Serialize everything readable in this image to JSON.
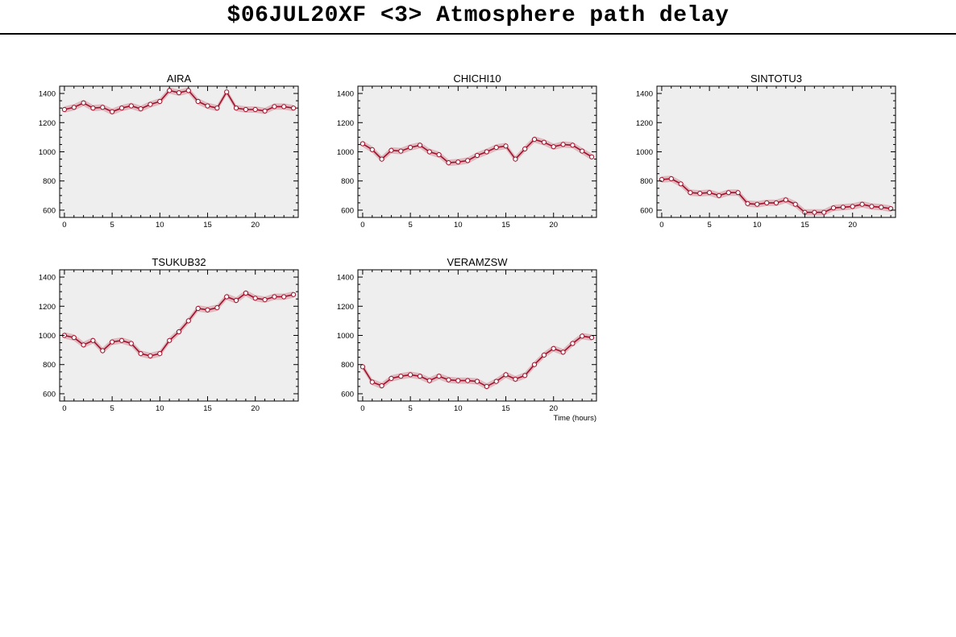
{
  "page": {
    "title": "$06JUL20XF <3>  Atmosphere path delay"
  },
  "colors": {
    "panel_bg": "#eeeeee",
    "line": "#a0102a",
    "band": "#d8a8b0",
    "marker_fill": "#ffffff"
  },
  "chart_data": [
    {
      "type": "line",
      "title": "AIRA",
      "x": [
        0,
        1,
        2,
        3,
        4,
        5,
        6,
        7,
        8,
        9,
        10,
        11,
        12,
        13,
        14,
        15,
        16,
        17,
        18,
        19,
        20,
        21,
        22,
        23,
        24
      ],
      "y": [
        1290,
        1305,
        1335,
        1300,
        1305,
        1275,
        1300,
        1315,
        1295,
        1325,
        1345,
        1420,
        1405,
        1420,
        1345,
        1315,
        1300,
        1410,
        1300,
        1290,
        1290,
        1280,
        1310,
        1310,
        1300
      ],
      "xlim": [
        -0.5,
        24.5
      ],
      "ylim": [
        550,
        1450
      ],
      "xticks": [
        0,
        5,
        10,
        15,
        20
      ],
      "yticks": [
        600,
        800,
        1000,
        1200,
        1400
      ]
    },
    {
      "type": "line",
      "title": "CHICHI10",
      "x": [
        0,
        1,
        2,
        3,
        4,
        5,
        6,
        7,
        8,
        9,
        10,
        11,
        12,
        13,
        14,
        15,
        16,
        17,
        18,
        19,
        20,
        21,
        22,
        23,
        24
      ],
      "y": [
        1055,
        1015,
        950,
        1010,
        1005,
        1030,
        1045,
        1000,
        980,
        925,
        930,
        940,
        975,
        1000,
        1030,
        1040,
        950,
        1020,
        1085,
        1065,
        1035,
        1050,
        1045,
        1005,
        965
      ],
      "xlim": [
        -0.5,
        24.5
      ],
      "ylim": [
        550,
        1450
      ],
      "xticks": [
        0,
        5,
        10,
        15,
        20
      ],
      "yticks": [
        600,
        800,
        1000,
        1200,
        1400
      ]
    },
    {
      "type": "line",
      "title": "SINTOTU3",
      "x": [
        0,
        1,
        2,
        3,
        4,
        5,
        6,
        7,
        8,
        9,
        10,
        11,
        12,
        13,
        14,
        15,
        16,
        17,
        18,
        19,
        20,
        21,
        22,
        23,
        24
      ],
      "y": [
        810,
        815,
        780,
        720,
        715,
        720,
        700,
        720,
        720,
        645,
        640,
        650,
        650,
        670,
        640,
        585,
        585,
        585,
        615,
        620,
        625,
        640,
        625,
        620,
        610
      ],
      "xlim": [
        -0.5,
        24.5
      ],
      "ylim": [
        550,
        1450
      ],
      "xticks": [
        0,
        5,
        10,
        15,
        20
      ],
      "yticks": [
        600,
        800,
        1000,
        1200,
        1400
      ]
    },
    {
      "type": "line",
      "title": "TSUKUB32",
      "x": [
        0,
        1,
        2,
        3,
        4,
        5,
        6,
        7,
        8,
        9,
        10,
        11,
        12,
        13,
        14,
        15,
        16,
        17,
        18,
        19,
        20,
        21,
        22,
        23,
        24
      ],
      "y": [
        1000,
        985,
        935,
        965,
        895,
        955,
        965,
        945,
        875,
        860,
        875,
        965,
        1025,
        1100,
        1185,
        1175,
        1190,
        1265,
        1240,
        1290,
        1255,
        1245,
        1265,
        1265,
        1280
      ],
      "xlim": [
        -0.5,
        24.5
      ],
      "ylim": [
        550,
        1450
      ],
      "xticks": [
        0,
        5,
        10,
        15,
        20
      ],
      "yticks": [
        600,
        800,
        1000,
        1200,
        1400
      ]
    },
    {
      "type": "line",
      "title": "VERAMZSW",
      "x": [
        0,
        1,
        2,
        3,
        4,
        5,
        6,
        7,
        8,
        9,
        10,
        11,
        12,
        13,
        14,
        15,
        16,
        17,
        18,
        19,
        20,
        21,
        22,
        23,
        24
      ],
      "y": [
        785,
        680,
        655,
        705,
        720,
        730,
        720,
        690,
        720,
        695,
        690,
        690,
        685,
        650,
        685,
        730,
        700,
        725,
        800,
        865,
        910,
        885,
        945,
        995,
        985
      ],
      "xlim": [
        -0.5,
        24.5
      ],
      "ylim": [
        550,
        1450
      ],
      "xticks": [
        0,
        5,
        10,
        15,
        20
      ],
      "yticks": [
        600,
        800,
        1000,
        1200,
        1400
      ],
      "xlabel": "Time (hours)"
    }
  ]
}
